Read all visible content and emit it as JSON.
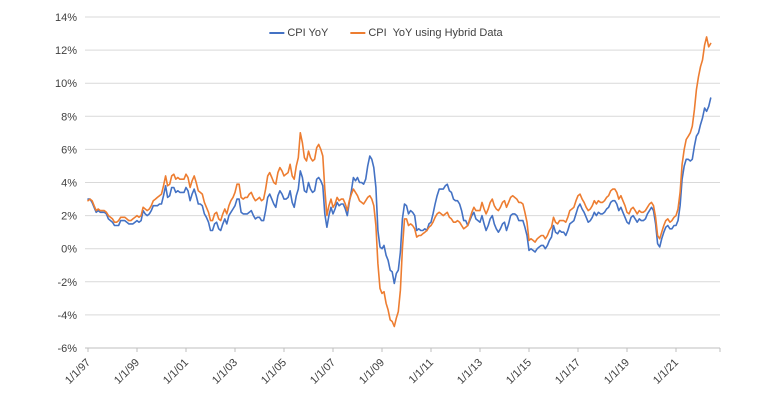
{
  "chart_data": {
    "type": "line",
    "title": "",
    "xlabel": "",
    "ylabel": "",
    "grid": true,
    "legend_position": "top-center",
    "ylim": [
      -6,
      14
    ],
    "y_ticks": [
      14,
      12,
      10,
      8,
      6,
      4,
      2,
      0,
      -2,
      -4,
      -6
    ],
    "y_tick_labels": [
      "14%",
      "12%",
      "10%",
      "8%",
      "6%",
      "4%",
      "2%",
      "0%",
      "-2%",
      "-4%",
      "-6%"
    ],
    "x_start_year": 1997,
    "points_per_year": 12,
    "x_end": 2022.5,
    "x_tick_years": [
      1997,
      1999,
      2001,
      2003,
      2005,
      2007,
      2009,
      2011,
      2013,
      2015,
      2017,
      2019,
      2021
    ],
    "x_tick_labels": [
      "1/1/97",
      "1/1/99",
      "1/1/01",
      "1/1/03",
      "1/1/05",
      "1/1/07",
      "1/1/09",
      "1/1/11",
      "1/1/13",
      "1/1/15",
      "1/1/17",
      "1/1/19",
      "1/1/21"
    ],
    "colors": {
      "grid": "#D9D9D9",
      "axis": "#BFBFBF",
      "text": "#404040",
      "background": "#FFFFFF"
    },
    "series": [
      {
        "name": "CPI YoY",
        "color": "#4472C4",
        "values": [
          3.0,
          3.0,
          2.8,
          2.5,
          2.2,
          2.3,
          2.2,
          2.2,
          2.2,
          2.1,
          1.8,
          1.7,
          1.6,
          1.4,
          1.4,
          1.4,
          1.7,
          1.7,
          1.7,
          1.6,
          1.5,
          1.5,
          1.5,
          1.6,
          1.7,
          1.6,
          1.7,
          2.3,
          2.1,
          2.0,
          2.1,
          2.3,
          2.6,
          2.6,
          2.6,
          2.7,
          2.7,
          3.2,
          3.8,
          3.1,
          3.2,
          3.7,
          3.7,
          3.4,
          3.5,
          3.4,
          3.4,
          3.4,
          3.7,
          3.5,
          2.9,
          3.3,
          3.6,
          3.2,
          2.7,
          2.7,
          2.6,
          2.1,
          1.9,
          1.6,
          1.1,
          1.1,
          1.5,
          1.6,
          1.2,
          1.1,
          1.5,
          1.8,
          1.5,
          2.0,
          2.2,
          2.4,
          2.6,
          3.0,
          3.0,
          2.2,
          2.1,
          2.1,
          2.1,
          2.2,
          2.3,
          2.0,
          1.8,
          1.9,
          1.9,
          1.7,
          1.7,
          2.3,
          3.1,
          3.3,
          3.0,
          2.7,
          2.5,
          3.2,
          3.5,
          3.3,
          3.0,
          3.0,
          3.1,
          3.5,
          2.8,
          2.5,
          3.2,
          3.6,
          4.7,
          4.3,
          3.5,
          3.4,
          4.0,
          3.6,
          3.4,
          3.5,
          4.2,
          4.3,
          4.1,
          3.8,
          2.1,
          1.3,
          2.0,
          2.5,
          2.1,
          2.4,
          2.8,
          2.6,
          2.7,
          2.7,
          2.4,
          2.0,
          2.8,
          3.5,
          4.3,
          4.1,
          4.3,
          4.0,
          4.0,
          3.9,
          4.2,
          5.0,
          5.6,
          5.4,
          4.9,
          3.7,
          1.1,
          0.1,
          0.0,
          0.2,
          -0.4,
          -0.7,
          -1.3,
          -1.4,
          -2.1,
          -1.5,
          -1.3,
          -0.2,
          1.8,
          2.7,
          2.6,
          2.1,
          2.3,
          2.2,
          2.0,
          1.1,
          1.2,
          1.1,
          1.1,
          1.2,
          1.1,
          1.5,
          1.6,
          2.1,
          2.7,
          3.2,
          3.6,
          3.6,
          3.6,
          3.8,
          3.9,
          3.5,
          3.4,
          3.0,
          2.9,
          2.9,
          2.7,
          2.3,
          1.7,
          1.7,
          1.4,
          1.7,
          2.0,
          2.2,
          1.8,
          1.7,
          1.6,
          2.0,
          1.5,
          1.1,
          1.4,
          1.8,
          2.0,
          1.5,
          1.2,
          1.0,
          1.2,
          1.5,
          1.6,
          1.1,
          1.5,
          2.0,
          2.1,
          2.1,
          2.0,
          1.7,
          1.7,
          1.7,
          1.3,
          0.8,
          -0.1,
          0.0,
          -0.1,
          -0.2,
          0.0,
          0.1,
          0.2,
          0.2,
          0.0,
          0.2,
          0.5,
          0.7,
          1.4,
          1.0,
          0.9,
          1.1,
          1.0,
          1.0,
          0.8,
          1.1,
          1.5,
          1.6,
          1.7,
          2.1,
          2.5,
          2.7,
          2.4,
          2.2,
          1.9,
          1.6,
          1.7,
          1.9,
          2.2,
          2.0,
          2.2,
          2.1,
          2.1,
          2.2,
          2.4,
          2.5,
          2.8,
          2.9,
          2.9,
          2.7,
          2.3,
          2.5,
          2.2,
          1.9,
          1.6,
          1.5,
          1.9,
          2.0,
          1.8,
          1.6,
          1.8,
          1.7,
          1.7,
          1.8,
          2.1,
          2.3,
          2.5,
          2.3,
          1.5,
          0.3,
          0.1,
          0.6,
          1.0,
          1.3,
          1.4,
          1.2,
          1.2,
          1.4,
          1.4,
          1.7,
          2.6,
          4.2,
          5.0,
          5.4,
          5.4,
          5.3,
          5.4,
          6.2,
          6.8,
          7.0,
          7.5,
          7.9,
          8.5,
          8.3,
          8.6,
          9.1
        ]
      },
      {
        "name": "CPI  YoY using Hybrid Data",
        "color": "#ED7D31",
        "values": [
          2.9,
          3.0,
          2.9,
          2.6,
          2.3,
          2.4,
          2.3,
          2.3,
          2.3,
          2.2,
          2.0,
          1.9,
          1.8,
          1.6,
          1.6,
          1.7,
          1.9,
          1.9,
          1.9,
          1.8,
          1.7,
          1.7,
          1.8,
          1.9,
          2.0,
          1.9,
          2.0,
          2.5,
          2.4,
          2.3,
          2.4,
          2.6,
          2.9,
          3.0,
          3.1,
          3.2,
          3.3,
          3.8,
          4.4,
          3.8,
          3.9,
          4.4,
          4.5,
          4.2,
          4.3,
          4.2,
          4.2,
          4.2,
          4.5,
          4.3,
          3.7,
          4.1,
          4.4,
          4.0,
          3.5,
          3.4,
          3.3,
          2.8,
          2.5,
          2.2,
          1.7,
          1.7,
          2.1,
          2.2,
          1.8,
          1.7,
          2.1,
          2.4,
          2.1,
          2.6,
          2.9,
          3.1,
          3.4,
          3.9,
          3.9,
          3.1,
          3.0,
          3.1,
          3.1,
          3.3,
          3.4,
          3.1,
          2.9,
          3.0,
          3.1,
          2.9,
          3.0,
          3.6,
          4.4,
          4.6,
          4.3,
          4.0,
          3.9,
          4.6,
          4.9,
          4.7,
          4.4,
          4.5,
          4.6,
          5.1,
          4.4,
          4.2,
          5.0,
          5.5,
          7.0,
          6.4,
          5.5,
          5.3,
          5.9,
          5.5,
          5.3,
          5.4,
          6.1,
          6.3,
          6.0,
          5.6,
          3.6,
          2.0,
          2.6,
          3.0,
          2.5,
          2.7,
          3.1,
          2.9,
          3.0,
          3.0,
          2.7,
          2.3,
          2.9,
          3.3,
          3.6,
          3.4,
          3.2,
          2.9,
          2.8,
          2.7,
          2.9,
          3.1,
          3.2,
          3.0,
          2.6,
          1.4,
          -0.9,
          -2.4,
          -2.7,
          -2.6,
          -3.3,
          -3.7,
          -4.3,
          -4.4,
          -4.7,
          -4.2,
          -3.8,
          -2.5,
          0.0,
          1.8,
          1.8,
          1.4,
          1.5,
          1.4,
          1.2,
          0.7,
          0.8,
          0.8,
          0.9,
          1.0,
          1.1,
          1.3,
          1.4,
          1.6,
          1.9,
          2.1,
          2.2,
          2.1,
          2.0,
          2.1,
          2.2,
          1.9,
          1.8,
          1.6,
          1.6,
          1.7,
          1.6,
          1.4,
          1.2,
          1.3,
          1.4,
          1.8,
          2.2,
          2.5,
          2.3,
          2.3,
          2.3,
          2.8,
          2.4,
          2.1,
          2.4,
          2.8,
          3.0,
          2.6,
          2.4,
          2.3,
          2.5,
          2.8,
          2.9,
          2.5,
          2.8,
          3.1,
          3.2,
          3.1,
          3.0,
          2.8,
          2.8,
          2.7,
          2.2,
          1.6,
          0.5,
          0.6,
          0.5,
          0.4,
          0.6,
          0.7,
          0.8,
          0.8,
          0.6,
          0.8,
          1.1,
          1.3,
          1.9,
          1.6,
          1.5,
          1.7,
          1.7,
          1.7,
          1.6,
          1.9,
          2.3,
          2.4,
          2.5,
          2.9,
          3.2,
          3.3,
          3.0,
          2.8,
          2.5,
          2.3,
          2.4,
          2.6,
          2.9,
          2.7,
          2.9,
          2.8,
          2.8,
          2.9,
          3.1,
          3.2,
          3.5,
          3.6,
          3.6,
          3.4,
          3.0,
          3.2,
          2.9,
          2.6,
          2.2,
          2.1,
          2.4,
          2.5,
          2.3,
          2.1,
          2.3,
          2.2,
          2.2,
          2.3,
          2.5,
          2.7,
          2.8,
          2.6,
          1.9,
          0.8,
          0.6,
          1.0,
          1.4,
          1.7,
          1.8,
          1.6,
          1.7,
          1.9,
          2.0,
          2.4,
          3.4,
          5.1,
          6.0,
          6.6,
          6.8,
          7.0,
          7.4,
          8.4,
          9.6,
          10.4,
          11.0,
          11.4,
          12.3,
          12.8,
          12.2,
          12.4
        ]
      }
    ]
  }
}
